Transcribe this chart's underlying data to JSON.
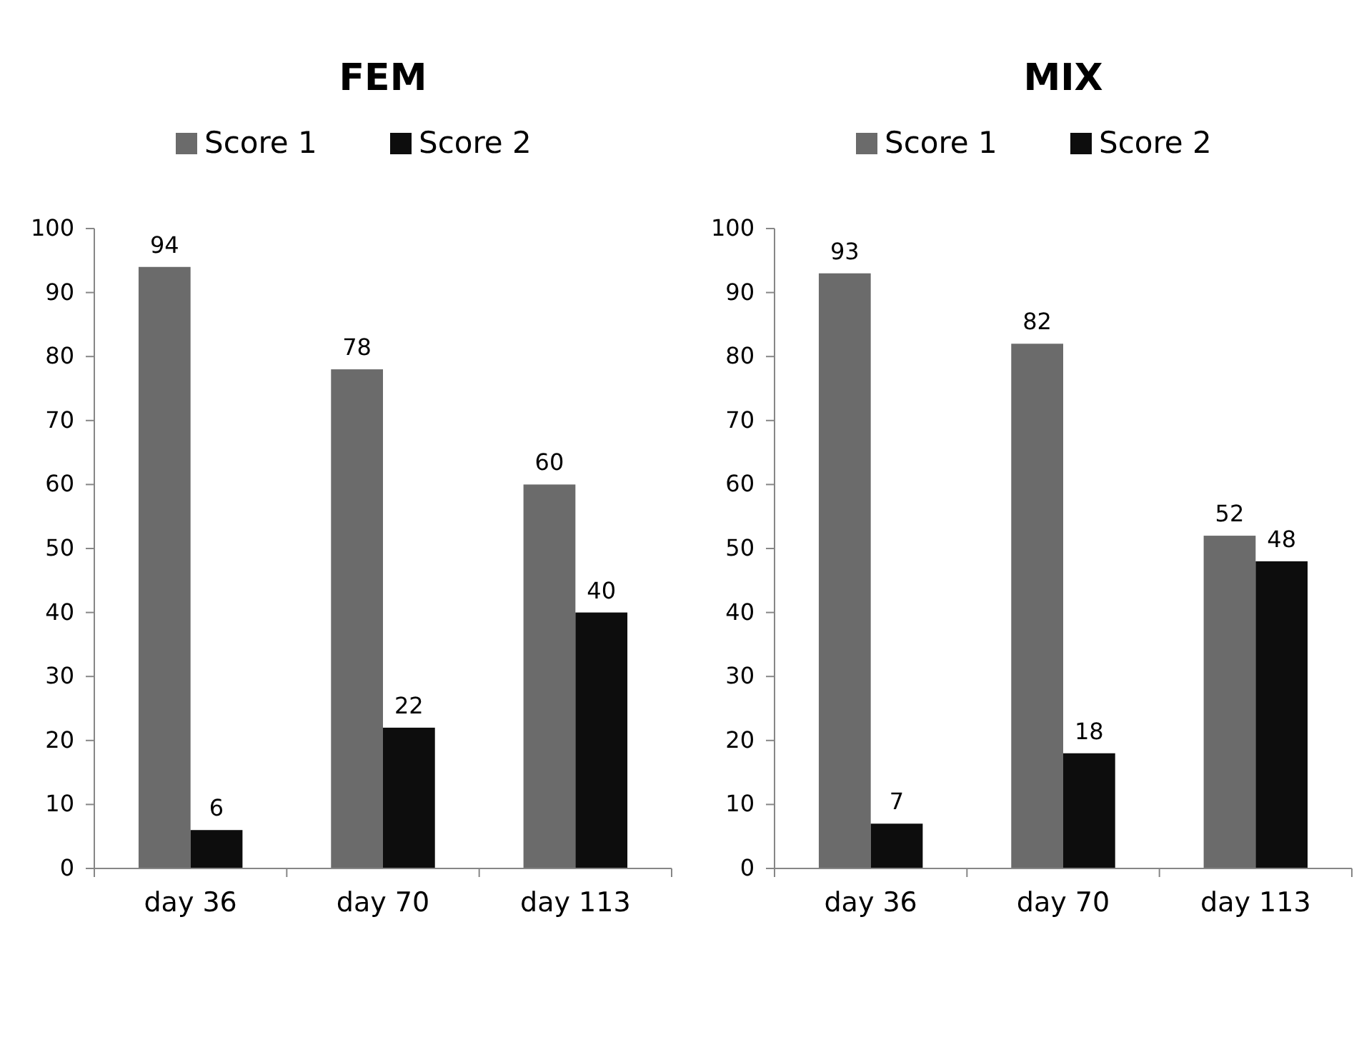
{
  "chart_data": [
    {
      "type": "bar",
      "title": "FEM",
      "categories": [
        "day 36",
        "day 70",
        "day 113"
      ],
      "series": [
        {
          "name": "Score 1",
          "color": "#6b6b6b",
          "values": [
            94,
            78,
            60
          ]
        },
        {
          "name": "Score 2",
          "color": "#0d0d0d",
          "values": [
            6,
            22,
            40
          ]
        }
      ],
      "ylim": [
        0,
        100
      ],
      "yticks": [
        0,
        10,
        20,
        30,
        40,
        50,
        60,
        70,
        80,
        90,
        100
      ],
      "grid": false,
      "legend": "top",
      "data_labels": true
    },
    {
      "type": "bar",
      "title": "MIX",
      "categories": [
        "day 36",
        "day 70",
        "day 113"
      ],
      "series": [
        {
          "name": "Score 1",
          "color": "#6b6b6b",
          "values": [
            93,
            82,
            52
          ]
        },
        {
          "name": "Score 2",
          "color": "#0d0d0d",
          "values": [
            7,
            18,
            48
          ]
        }
      ],
      "ylim": [
        0,
        100
      ],
      "yticks": [
        0,
        10,
        20,
        30,
        40,
        50,
        60,
        70,
        80,
        90,
        100
      ],
      "grid": false,
      "legend": "top",
      "data_labels": true
    }
  ]
}
